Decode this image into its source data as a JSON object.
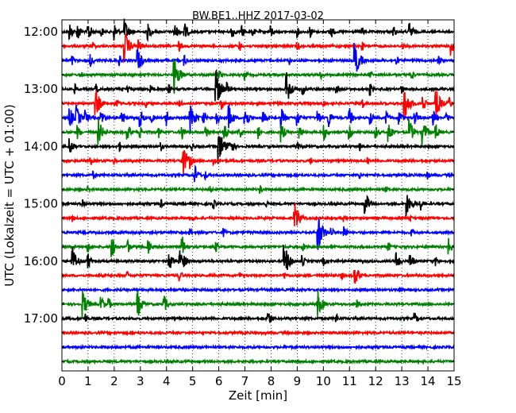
{
  "chart_data": {
    "type": "line",
    "title": "BW.BE1..HHZ 2017-03-02",
    "xlabel": "Zeit  [min]",
    "ylabel": "UTC (Lokalzeit = UTC + 01:00)",
    "xlim": [
      0,
      15
    ],
    "x_ticks": [
      "0",
      "1",
      "2",
      "3",
      "4",
      "5",
      "6",
      "7",
      "8",
      "9",
      "10",
      "11",
      "12",
      "13",
      "14",
      "15"
    ],
    "y_ticks": [
      "12:00",
      "13:00",
      "14:00",
      "15:00",
      "16:00",
      "17:00"
    ],
    "grid": "dotted vertical",
    "trace_interval_min": 15,
    "colors": [
      "#000000",
      "#ff0000",
      "#0000ff",
      "#008000"
    ],
    "series": [
      {
        "start": "12:00",
        "color": "#000000",
        "events": [
          [
            0.3,
            0.5
          ],
          [
            0.6,
            0.55
          ],
          [
            1.0,
            0.6
          ],
          [
            1.5,
            0.35
          ],
          [
            2.0,
            0.55
          ],
          [
            2.4,
            0.7
          ],
          [
            3.3,
            0.45
          ],
          [
            4.3,
            0.55
          ],
          [
            4.7,
            0.5
          ],
          [
            6.5,
            0.45
          ],
          [
            6.9,
            0.35
          ],
          [
            7.3,
            0.3
          ],
          [
            8.0,
            0.35
          ],
          [
            9.0,
            0.3
          ],
          [
            9.5,
            0.35
          ],
          [
            10.3,
            0.4
          ],
          [
            11.5,
            0.25
          ],
          [
            12.7,
            0.3
          ],
          [
            13.3,
            0.6
          ]
        ]
      },
      {
        "start": "12:15",
        "color": "#ff0000",
        "events": [
          [
            1.2,
            0.25
          ],
          [
            2.4,
            0.9
          ],
          [
            2.9,
            0.5
          ],
          [
            4.5,
            0.3
          ],
          [
            6.8,
            0.3
          ],
          [
            9.0,
            0.3
          ],
          [
            11.5,
            0.25
          ],
          [
            13.0,
            0.3
          ],
          [
            14.9,
            0.65
          ]
        ]
      },
      {
        "start": "12:30",
        "color": "#0000ff",
        "events": [
          [
            0.4,
            0.3
          ],
          [
            1.1,
            0.35
          ],
          [
            2.2,
            0.3
          ],
          [
            2.9,
            0.75
          ],
          [
            4.7,
            0.3
          ],
          [
            8.7,
            0.25
          ],
          [
            11.2,
            1.0
          ],
          [
            12.8,
            0.3
          ],
          [
            14.4,
            0.3
          ]
        ]
      },
      {
        "start": "12:45",
        "color": "#008000",
        "events": [
          [
            0.7,
            0.25
          ],
          [
            4.3,
            1.0
          ],
          [
            6.0,
            0.35
          ],
          [
            7.0,
            0.3
          ],
          [
            9.9,
            0.3
          ],
          [
            11.8,
            0.3
          ],
          [
            13.4,
            0.3
          ]
        ]
      },
      {
        "start": "13:00",
        "color": "#000000",
        "events": [
          [
            0.5,
            0.3
          ],
          [
            1.3,
            0.35
          ],
          [
            2.5,
            0.3
          ],
          [
            3.4,
            0.3
          ],
          [
            4.1,
            0.3
          ],
          [
            5.9,
            1.0
          ],
          [
            6.3,
            0.4
          ],
          [
            8.6,
            0.9
          ],
          [
            9.2,
            0.4
          ],
          [
            10.5,
            0.3
          ],
          [
            11.8,
            0.35
          ],
          [
            13.0,
            0.3
          ]
        ]
      },
      {
        "start": "13:15",
        "color": "#ff0000",
        "events": [
          [
            1.3,
            0.8
          ],
          [
            2.1,
            0.3
          ],
          [
            3.2,
            0.3
          ],
          [
            4.5,
            0.3
          ],
          [
            6.1,
            0.35
          ],
          [
            10.0,
            0.3
          ],
          [
            11.5,
            0.3
          ],
          [
            13.1,
            1.0
          ],
          [
            13.8,
            0.55
          ],
          [
            14.3,
            0.9
          ],
          [
            14.8,
            0.4
          ]
        ]
      },
      {
        "start": "13:30",
        "color": "#0000ff",
        "events": [
          [
            0.3,
            0.6
          ],
          [
            0.55,
            0.7
          ],
          [
            0.9,
            0.45
          ],
          [
            1.5,
            0.55
          ],
          [
            2.3,
            0.45
          ],
          [
            3.0,
            0.5
          ],
          [
            3.4,
            0.4
          ],
          [
            4.0,
            0.45
          ],
          [
            4.9,
            0.9
          ],
          [
            5.4,
            0.45
          ],
          [
            5.9,
            0.5
          ],
          [
            6.4,
            0.7
          ],
          [
            7.0,
            0.7
          ],
          [
            7.7,
            0.45
          ],
          [
            8.4,
            0.55
          ],
          [
            9.0,
            0.5
          ],
          [
            9.8,
            0.45
          ],
          [
            10.2,
            0.55
          ],
          [
            11.0,
            0.55
          ],
          [
            11.8,
            0.4
          ],
          [
            12.4,
            0.45
          ],
          [
            12.9,
            0.5
          ],
          [
            13.5,
            0.5
          ],
          [
            14.2,
            0.55
          ],
          [
            14.7,
            0.4
          ]
        ]
      },
      {
        "start": "13:45",
        "color": "#008000",
        "events": [
          [
            0.6,
            0.4
          ],
          [
            1.4,
            0.75
          ],
          [
            2.5,
            0.55
          ],
          [
            3.0,
            0.35
          ],
          [
            3.7,
            0.35
          ],
          [
            4.6,
            0.45
          ],
          [
            5.5,
            0.4
          ],
          [
            6.2,
            0.55
          ],
          [
            6.8,
            0.45
          ],
          [
            7.5,
            0.4
          ],
          [
            8.4,
            0.55
          ],
          [
            9.1,
            0.4
          ],
          [
            10.0,
            0.55
          ],
          [
            11.0,
            0.4
          ],
          [
            12.0,
            0.4
          ],
          [
            12.5,
            0.65
          ],
          [
            13.3,
            0.7
          ],
          [
            13.8,
            0.75
          ],
          [
            14.3,
            0.5
          ]
        ]
      },
      {
        "start": "14:00",
        "color": "#000000",
        "events": [
          [
            0.3,
            0.55
          ],
          [
            2.2,
            0.3
          ],
          [
            3.8,
            0.25
          ],
          [
            5.0,
            0.25
          ],
          [
            6.0,
            1.0
          ],
          [
            6.4,
            0.7
          ],
          [
            9.0,
            0.3
          ],
          [
            11.4,
            0.25
          ]
        ]
      },
      {
        "start": "14:15",
        "color": "#ff0000",
        "events": [
          [
            1.1,
            0.3
          ],
          [
            2.0,
            0.25
          ],
          [
            4.6,
            1.0
          ],
          [
            4.9,
            0.45
          ],
          [
            5.8,
            0.3
          ],
          [
            9.5,
            0.25
          ],
          [
            11.7,
            0.25
          ]
        ]
      },
      {
        "start": "14:30",
        "color": "#0000ff",
        "events": [
          [
            1.2,
            0.25
          ],
          [
            5.1,
            0.5
          ],
          [
            5.5,
            0.25
          ],
          [
            11.4,
            0.25
          ],
          [
            14.0,
            0.25
          ]
        ]
      },
      {
        "start": "14:45",
        "color": "#008000",
        "events": [
          [
            1.0,
            0.2
          ],
          [
            5.7,
            0.2
          ],
          [
            7.6,
            0.25
          ],
          [
            12.4,
            0.2
          ]
        ]
      },
      {
        "start": "15:00",
        "color": "#000000",
        "events": [
          [
            0.8,
            0.3
          ],
          [
            3.8,
            0.25
          ],
          [
            5.8,
            0.3
          ],
          [
            7.8,
            0.25
          ],
          [
            11.6,
            0.7
          ],
          [
            13.2,
            0.7
          ],
          [
            13.7,
            0.45
          ]
        ]
      },
      {
        "start": "15:15",
        "color": "#ff0000",
        "events": [
          [
            0.4,
            0.25
          ],
          [
            5.0,
            0.25
          ],
          [
            8.9,
            0.9
          ],
          [
            10.8,
            0.25
          ],
          [
            13.3,
            0.25
          ]
        ]
      },
      {
        "start": "15:30",
        "color": "#0000ff",
        "events": [
          [
            4.9,
            0.25
          ],
          [
            6.2,
            0.25
          ],
          [
            9.8,
            1.0
          ],
          [
            10.3,
            0.35
          ],
          [
            10.8,
            0.45
          ],
          [
            13.4,
            0.25
          ]
        ]
      },
      {
        "start": "15:45",
        "color": "#008000",
        "events": [
          [
            1.0,
            0.3
          ],
          [
            1.9,
            0.7
          ],
          [
            2.5,
            0.45
          ],
          [
            3.3,
            0.4
          ],
          [
            4.6,
            0.6
          ],
          [
            5.9,
            0.3
          ],
          [
            9.2,
            0.3
          ],
          [
            12.5,
            0.3
          ],
          [
            14.8,
            0.5
          ]
        ]
      },
      {
        "start": "16:00",
        "color": "#000000",
        "events": [
          [
            0.4,
            0.85
          ],
          [
            1.0,
            0.45
          ],
          [
            4.1,
            0.6
          ],
          [
            4.5,
            0.9
          ],
          [
            8.5,
            1.0
          ],
          [
            9.2,
            0.35
          ],
          [
            10.0,
            0.3
          ],
          [
            12.8,
            0.55
          ],
          [
            13.3,
            0.55
          ],
          [
            14.3,
            0.3
          ]
        ]
      },
      {
        "start": "16:15",
        "color": "#ff0000",
        "events": [
          [
            2.5,
            0.25
          ],
          [
            4.5,
            0.35
          ],
          [
            6.8,
            0.25
          ],
          [
            8.5,
            0.25
          ],
          [
            10.7,
            0.25
          ],
          [
            11.2,
            0.7
          ]
        ]
      },
      {
        "start": "16:30",
        "color": "#0000ff",
        "events": [
          [
            12.9,
            0.25
          ]
        ]
      },
      {
        "start": "16:45",
        "color": "#008000",
        "events": [
          [
            0.8,
            0.8
          ],
          [
            1.5,
            0.5
          ],
          [
            1.8,
            0.35
          ],
          [
            2.9,
            0.75
          ],
          [
            3.9,
            0.55
          ],
          [
            9.8,
            0.75
          ],
          [
            11.3,
            0.25
          ]
        ]
      },
      {
        "start": "17:00",
        "color": "#000000",
        "events": [
          [
            0.9,
            0.3
          ],
          [
            7.9,
            0.45
          ],
          [
            10.5,
            0.3
          ],
          [
            13.5,
            0.35
          ]
        ]
      },
      {
        "start": "17:15",
        "color": "#ff0000",
        "events": []
      },
      {
        "start": "17:30",
        "color": "#0000ff",
        "events": []
      },
      {
        "start": "17:45",
        "color": "#008000",
        "events": []
      }
    ]
  }
}
